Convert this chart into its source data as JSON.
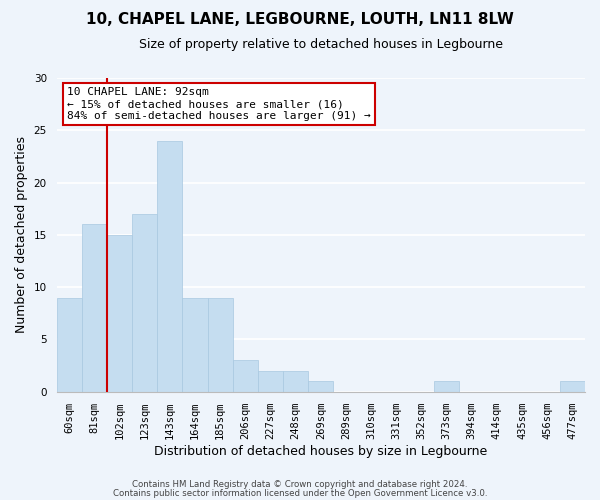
{
  "title": "10, CHAPEL LANE, LEGBOURNE, LOUTH, LN11 8LW",
  "subtitle": "Size of property relative to detached houses in Legbourne",
  "xlabel": "Distribution of detached houses by size in Legbourne",
  "ylabel": "Number of detached properties",
  "bar_labels": [
    "60sqm",
    "81sqm",
    "102sqm",
    "123sqm",
    "143sqm",
    "164sqm",
    "185sqm",
    "206sqm",
    "227sqm",
    "248sqm",
    "269sqm",
    "289sqm",
    "310sqm",
    "331sqm",
    "352sqm",
    "373sqm",
    "394sqm",
    "414sqm",
    "435sqm",
    "456sqm",
    "477sqm"
  ],
  "bar_values": [
    9,
    16,
    15,
    17,
    24,
    9,
    9,
    3,
    2,
    2,
    1,
    0,
    0,
    0,
    0,
    1,
    0,
    0,
    0,
    0,
    1
  ],
  "bar_color": "#c5ddf0",
  "bar_edge_color": "#a8c8e0",
  "property_label": "10 CHAPEL LANE: 92sqm",
  "annotation_line1": "← 15% of detached houses are smaller (16)",
  "annotation_line2": "84% of semi-detached houses are larger (91) →",
  "annotation_box_color": "#ffffff",
  "annotation_box_edge": "#cc0000",
  "vline_color": "#cc0000",
  "vline_x_index": 1.5,
  "ylim": [
    0,
    30
  ],
  "yticks": [
    0,
    5,
    10,
    15,
    20,
    25,
    30
  ],
  "footer1": "Contains HM Land Registry data © Crown copyright and database right 2024.",
  "footer2": "Contains public sector information licensed under the Open Government Licence v3.0.",
  "bg_color": "#eef4fb",
  "plot_bg_color": "#eef4fb",
  "grid_color": "#ffffff",
  "title_fontsize": 11,
  "subtitle_fontsize": 9,
  "ylabel_fontsize": 9,
  "xlabel_fontsize": 9,
  "tick_fontsize": 7.5,
  "annot_fontsize": 8
}
